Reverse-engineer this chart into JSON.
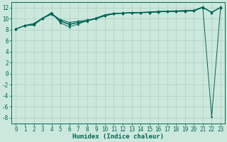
{
  "xlabel": "Humidex (Indice chaleur)",
  "bg_color": "#cce8dd",
  "grid_color": "#aacfbf",
  "line_color": "#006655",
  "spine_color": "#006655",
  "xlim": [
    -0.5,
    23.5
  ],
  "ylim": [
    -9,
    13
  ],
  "xticks": [
    0,
    1,
    2,
    3,
    4,
    5,
    6,
    7,
    8,
    9,
    10,
    11,
    12,
    13,
    14,
    15,
    16,
    17,
    18,
    19,
    20,
    21,
    22,
    23
  ],
  "yticks": [
    -8,
    -6,
    -4,
    -2,
    0,
    2,
    4,
    6,
    8,
    10,
    12
  ],
  "series": [
    [
      8.1,
      8.7,
      8.8,
      10.0,
      11.1,
      9.2,
      8.5,
      9.0,
      9.6,
      10.1,
      10.7,
      10.95,
      11.0,
      11.1,
      11.1,
      11.2,
      11.3,
      11.35,
      11.4,
      11.45,
      11.5,
      12.1,
      -7.8,
      12.1
    ],
    [
      8.1,
      8.7,
      9.0,
      10.05,
      10.85,
      9.8,
      9.3,
      9.5,
      9.7,
      10.0,
      10.55,
      10.9,
      11.0,
      11.05,
      11.1,
      11.15,
      11.25,
      11.3,
      11.35,
      11.4,
      11.4,
      12.05,
      11.15,
      12.05
    ],
    [
      8.1,
      8.75,
      9.1,
      10.1,
      10.95,
      9.5,
      8.9,
      9.25,
      9.55,
      9.95,
      10.5,
      10.85,
      10.95,
      11.0,
      11.05,
      11.1,
      11.2,
      11.25,
      11.3,
      11.35,
      11.4,
      12.0,
      11.1,
      12.0
    ],
    [
      8.1,
      8.75,
      8.95,
      10.05,
      10.75,
      9.6,
      9.0,
      9.3,
      9.6,
      10.0,
      10.5,
      10.88,
      10.95,
      11.0,
      11.05,
      11.1,
      11.2,
      11.25,
      11.3,
      11.3,
      11.4,
      12.0,
      11.1,
      12.0
    ]
  ],
  "xlabel_fontsize": 6.5,
  "tick_fontsize": 5.5
}
